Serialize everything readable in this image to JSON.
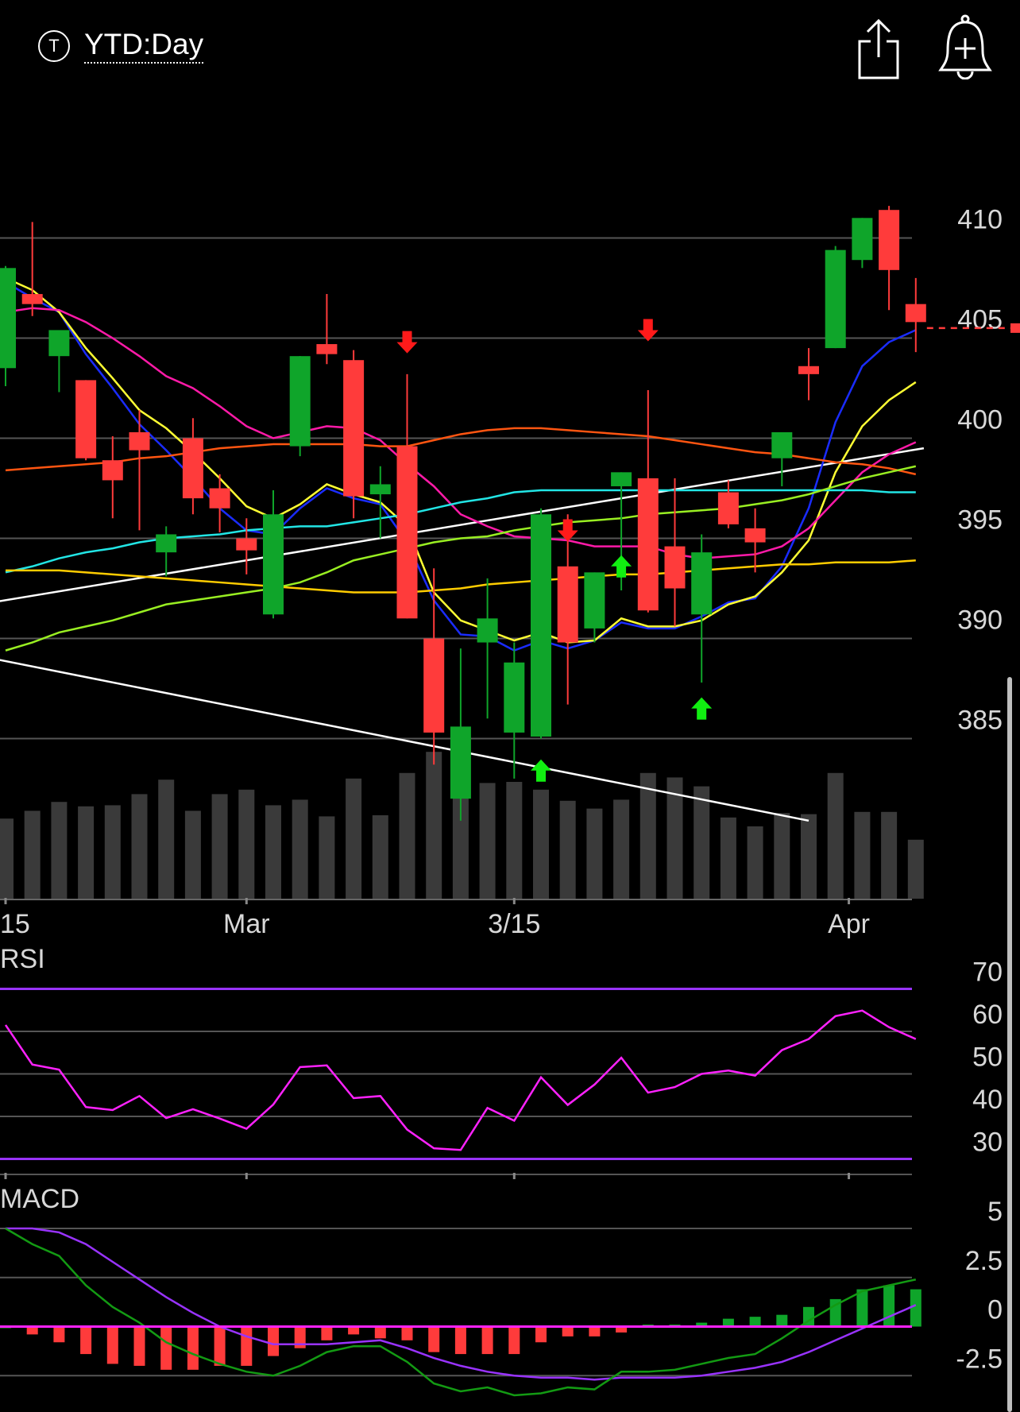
{
  "header": {
    "period_icon_glyph": "T",
    "period_label": "YTD:Day"
  },
  "icons": {
    "share": "share-icon",
    "alert": "add-alert-bell-icon"
  },
  "colors": {
    "up": "#0fa52a",
    "down": "#ff3b3b",
    "grid": "#555555",
    "volume": "#3a3a3a",
    "sma_blue": "#1a2cff",
    "sma_yellow": "#ffff33",
    "sma_magenta": "#ff1aa8",
    "sma_orange": "#ff5511",
    "sma_cyan": "#22e5e5",
    "sma_lime": "#99ee22",
    "sma_gold": "#ffcc00",
    "trendline": "#ffffff",
    "rsi": "#ff22ff",
    "rsi_bounds": "#9933ff",
    "macd": "#139a13",
    "signal": "#9933ff",
    "zero_line": "#ff22ff",
    "last_price_line": "#ff3b3b"
  },
  "chart_data": [
    {
      "type": "candlestick",
      "x_tick_labels": [
        "15",
        "Mar",
        "3/15",
        "Apr"
      ],
      "y_tick_labels": [
        "410",
        "405",
        "400",
        "395",
        "390",
        "385"
      ],
      "ylim": [
        377.5,
        412
      ],
      "last_price": 405.5,
      "candles": [
        {
          "o": 403.5,
          "h": 408.6,
          "l": 402.6,
          "c": 408.5
        },
        {
          "o": 407.2,
          "h": 410.8,
          "l": 406.1,
          "c": 406.7
        },
        {
          "o": 404.1,
          "h": 405.1,
          "l": 402.3,
          "c": 405.4
        },
        {
          "o": 402.9,
          "h": 402.9,
          "l": 398.9,
          "c": 399.0
        },
        {
          "o": 398.9,
          "h": 400.1,
          "l": 396.0,
          "c": 397.9
        },
        {
          "o": 400.3,
          "h": 401.4,
          "l": 395.4,
          "c": 399.4
        },
        {
          "o": 394.3,
          "h": 395.6,
          "l": 393.1,
          "c": 395.2
        },
        {
          "o": 400.0,
          "h": 401.0,
          "l": 396.2,
          "c": 397.0
        },
        {
          "o": 397.5,
          "h": 398.2,
          "l": 395.3,
          "c": 396.5
        },
        {
          "o": 395.0,
          "h": 396.0,
          "l": 393.2,
          "c": 394.4
        },
        {
          "o": 391.2,
          "h": 397.4,
          "l": 391.0,
          "c": 396.2
        },
        {
          "o": 399.6,
          "h": 404.1,
          "l": 399.1,
          "c": 404.1
        },
        {
          "o": 404.7,
          "h": 407.2,
          "l": 403.7,
          "c": 404.2
        },
        {
          "o": 403.9,
          "h": 404.4,
          "l": 396.0,
          "c": 397.1
        },
        {
          "o": 397.2,
          "h": 398.6,
          "l": 395.0,
          "c": 397.7
        },
        {
          "o": 399.6,
          "h": 403.2,
          "l": 391.0,
          "c": 391.0
        },
        {
          "o": 390.0,
          "h": 393.5,
          "l": 383.7,
          "c": 385.3
        },
        {
          "o": 382.0,
          "h": 389.5,
          "l": 380.9,
          "c": 385.6
        },
        {
          "o": 389.8,
          "h": 393.0,
          "l": 386.0,
          "c": 391.0
        },
        {
          "o": 385.3,
          "h": 389.8,
          "l": 383.0,
          "c": 388.8
        },
        {
          "o": 385.1,
          "h": 396.5,
          "l": 385.0,
          "c": 396.2
        },
        {
          "o": 393.6,
          "h": 396.2,
          "l": 386.7,
          "c": 389.8
        },
        {
          "o": 390.5,
          "h": 393.3,
          "l": 389.8,
          "c": 393.3
        },
        {
          "o": 397.6,
          "h": 398.3,
          "l": 392.4,
          "c": 398.3
        },
        {
          "o": 398.0,
          "h": 402.4,
          "l": 391.3,
          "c": 391.4
        },
        {
          "o": 394.6,
          "h": 398.0,
          "l": 390.6,
          "c": 392.5
        },
        {
          "o": 391.2,
          "h": 395.2,
          "l": 387.8,
          "c": 394.3
        },
        {
          "o": 397.3,
          "h": 397.9,
          "l": 395.5,
          "c": 395.7
        },
        {
          "o": 395.5,
          "h": 396.5,
          "l": 393.3,
          "c": 394.8
        },
        {
          "o": 399.0,
          "h": 400.1,
          "l": 397.6,
          "c": 400.3
        },
        {
          "o": 403.6,
          "h": 404.5,
          "l": 401.9,
          "c": 403.2
        },
        {
          "o": 404.5,
          "h": 409.6,
          "l": 404.5,
          "c": 409.4
        },
        {
          "o": 408.9,
          "h": 411.0,
          "l": 408.5,
          "c": 411.0
        },
        {
          "o": 411.4,
          "h": 411.6,
          "l": 406.4,
          "c": 408.4
        },
        {
          "o": 406.7,
          "h": 408.0,
          "l": 404.3,
          "c": 405.8
        }
      ],
      "volume": [
        0.72,
        0.79,
        0.87,
        0.83,
        0.84,
        0.94,
        1.07,
        0.79,
        0.94,
        0.98,
        0.84,
        0.89,
        0.74,
        1.08,
        0.75,
        1.13,
        1.32,
        1.17,
        1.04,
        1.05,
        0.98,
        0.88,
        0.81,
        0.89,
        1.13,
        1.09,
        1.01,
        0.73,
        0.65,
        0.77,
        0.76,
        1.13,
        0.78,
        0.78,
        0.53
      ],
      "moving_averages": [
        {
          "color": "sma_blue",
          "values": [
            407.8,
            407.0,
            406.3,
            404.2,
            402.5,
            400.7,
            399.4,
            398.0,
            396.5,
            395.4,
            395.2,
            396.5,
            397.5,
            397.0,
            396.7,
            394.8,
            391.9,
            390.2,
            390.1,
            389.4,
            389.9,
            389.5,
            389.9,
            390.8,
            390.5,
            390.5,
            391.1,
            391.8,
            392.0,
            393.6,
            396.5,
            400.8,
            403.6,
            404.8,
            405.4
          ]
        },
        {
          "color": "sma_yellow",
          "values": [
            408.0,
            407.4,
            406.3,
            404.5,
            403.0,
            401.4,
            400.5,
            399.3,
            398.0,
            396.6,
            396.0,
            396.7,
            397.7,
            397.2,
            396.8,
            395.6,
            392.3,
            390.9,
            390.4,
            389.9,
            390.3,
            389.8,
            389.9,
            391.0,
            390.6,
            390.6,
            390.9,
            391.7,
            392.1,
            393.3,
            394.9,
            398.3,
            400.6,
            401.9,
            402.8
          ]
        },
        {
          "color": "sma_magenta",
          "values": [
            406.3,
            406.5,
            406.4,
            405.8,
            405.0,
            404.1,
            403.1,
            402.5,
            401.6,
            400.6,
            400.0,
            400.3,
            400.6,
            400.5,
            399.9,
            398.7,
            397.6,
            396.2,
            395.6,
            395.1,
            395.0,
            394.9,
            394.6,
            394.6,
            394.6,
            394.2,
            394.0,
            394.1,
            394.2,
            394.6,
            395.5,
            396.9,
            398.3,
            399.2,
            399.8
          ]
        },
        {
          "color": "sma_orange",
          "values": [
            398.4,
            398.5,
            398.6,
            398.7,
            398.8,
            399.0,
            399.1,
            399.3,
            399.5,
            399.6,
            399.7,
            399.7,
            399.7,
            399.7,
            399.6,
            399.6,
            399.9,
            400.2,
            400.4,
            400.5,
            400.5,
            400.4,
            400.3,
            400.2,
            400.1,
            399.9,
            399.7,
            399.5,
            399.3,
            399.2,
            399.0,
            398.8,
            398.7,
            398.5,
            398.2
          ]
        },
        {
          "color": "sma_cyan",
          "values": [
            393.3,
            393.6,
            394.0,
            394.3,
            394.5,
            394.8,
            395.0,
            395.1,
            395.2,
            395.4,
            395.5,
            395.6,
            395.6,
            395.8,
            396.0,
            396.2,
            396.5,
            396.8,
            397.0,
            397.3,
            397.4,
            397.4,
            397.4,
            397.4,
            397.4,
            397.4,
            397.4,
            397.4,
            397.4,
            397.4,
            397.4,
            397.4,
            397.4,
            397.3,
            397.3
          ]
        },
        {
          "color": "sma_lime",
          "values": [
            389.4,
            389.8,
            390.3,
            390.6,
            390.9,
            391.3,
            391.7,
            391.9,
            392.1,
            392.3,
            392.5,
            392.8,
            393.3,
            393.9,
            394.2,
            394.5,
            394.8,
            395.0,
            395.1,
            395.4,
            395.6,
            395.8,
            395.9,
            396.0,
            396.2,
            396.3,
            396.4,
            396.5,
            396.7,
            396.9,
            397.2,
            397.6,
            398.0,
            398.3,
            398.6
          ]
        },
        {
          "color": "sma_gold",
          "values": [
            393.4,
            393.4,
            393.4,
            393.3,
            393.2,
            393.1,
            393.0,
            392.9,
            392.8,
            392.7,
            392.6,
            392.5,
            392.4,
            392.3,
            392.3,
            392.3,
            392.4,
            392.5,
            392.7,
            392.8,
            392.9,
            393.0,
            393.1,
            393.2,
            393.2,
            393.3,
            393.4,
            393.5,
            393.6,
            393.7,
            393.7,
            393.8,
            393.8,
            393.8,
            393.9
          ]
        }
      ],
      "trendlines": [
        {
          "from": [
            -0.5,
            391.8
          ],
          "to": [
            34.3,
            399.5
          ]
        },
        {
          "from": [
            -0.5,
            389.0
          ],
          "to": [
            30.0,
            380.9
          ]
        }
      ],
      "signals": [
        {
          "index": 15,
          "direction": "down",
          "value": 404.4
        },
        {
          "index": 20,
          "direction": "up",
          "value": 383.8
        },
        {
          "index": 21,
          "direction": "down",
          "value": 395.0
        },
        {
          "index": 23,
          "direction": "up",
          "value": 394.0
        },
        {
          "index": 24,
          "direction": "down",
          "value": 405.0
        },
        {
          "index": 26,
          "direction": "up",
          "value": 386.9
        }
      ]
    },
    {
      "type": "line",
      "title": "RSI",
      "y_tick_labels": [
        "70",
        "60",
        "50",
        "40",
        "30"
      ],
      "ylim": [
        26.5,
        72.5
      ],
      "bounds": [
        70,
        30
      ],
      "values": [
        61.5,
        52.2,
        51.0,
        42.2,
        41.5,
        44.8,
        39.6,
        41.7,
        39.5,
        37.1,
        42.8,
        51.6,
        52.0,
        44.3,
        44.8,
        36.9,
        32.5,
        32.1,
        42.0,
        39.0,
        49.2,
        42.7,
        47.5,
        53.8,
        45.6,
        46.9,
        50.0,
        50.8,
        49.6,
        55.6,
        58.2,
        63.6,
        64.9,
        61.0,
        58.2
      ]
    },
    {
      "type": "bar",
      "title": "MACD",
      "y_tick_labels": [
        "5",
        "2.5",
        "0",
        "-2.5"
      ],
      "ylim": [
        -3.6,
        5.6
      ],
      "macd": [
        5.0,
        4.2,
        3.6,
        2.1,
        1.0,
        0.2,
        -0.8,
        -1.4,
        -1.9,
        -2.3,
        -2.5,
        -2.0,
        -1.3,
        -1.0,
        -1.0,
        -1.8,
        -2.9,
        -3.3,
        -3.1,
        -3.5,
        -3.4,
        -3.1,
        -3.2,
        -2.3,
        -2.3,
        -2.2,
        -1.9,
        -1.6,
        -1.4,
        -0.6,
        0.3,
        1.1,
        1.8,
        2.1,
        2.4
      ],
      "signal": [
        5.0,
        5.0,
        4.8,
        4.2,
        3.3,
        2.4,
        1.5,
        0.7,
        0.0,
        -0.5,
        -0.9,
        -0.9,
        -0.9,
        -0.8,
        -0.7,
        -1.1,
        -1.6,
        -2.0,
        -2.3,
        -2.5,
        -2.6,
        -2.6,
        -2.7,
        -2.6,
        -2.6,
        -2.6,
        -2.5,
        -2.3,
        -2.1,
        -1.8,
        -1.3,
        -0.7,
        -0.1,
        0.5,
        1.1
      ],
      "histogram": [
        0.0,
        -0.4,
        -0.8,
        -1.4,
        -1.9,
        -2.0,
        -2.2,
        -2.2,
        -2.0,
        -2.0,
        -1.5,
        -1.1,
        -0.7,
        -0.4,
        -0.6,
        -0.7,
        -1.3,
        -1.4,
        -1.4,
        -1.4,
        -0.8,
        -0.5,
        -0.5,
        -0.3,
        0.1,
        0.1,
        0.2,
        0.4,
        0.5,
        0.6,
        1.0,
        1.4,
        1.9,
        2.1,
        1.9
      ]
    }
  ]
}
